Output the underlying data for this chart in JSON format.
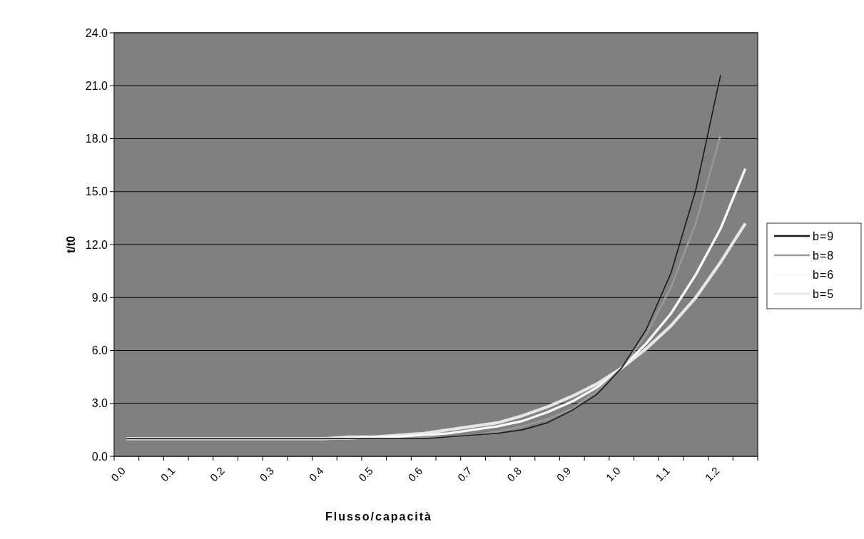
{
  "chart_data": {
    "type": "line",
    "xlabel": "Flusso/capacità",
    "ylabel": "t/t0",
    "categories": [
      "0.0",
      null,
      "0.1",
      null,
      "0.2",
      null,
      "0.3",
      null,
      "0.4",
      null,
      "0.5",
      null,
      "0.6",
      null,
      "0.7",
      null,
      "0.8",
      null,
      "0.9",
      null,
      "1.0",
      null,
      "1.1",
      null,
      "1.2",
      null
    ],
    "series": [
      {
        "name": "b=9",
        "color": "#1a1a1a",
        "values": [
          1,
          1,
          1,
          1,
          1,
          1,
          1,
          1,
          1,
          1,
          1,
          1,
          1,
          1.1,
          1.2,
          1.3,
          1.5,
          1.9,
          2.6,
          3.5,
          5,
          7.2,
          10.4,
          15.1,
          21.6,
          null
        ]
      },
      {
        "name": "b=8",
        "color": "#999999",
        "values": [
          1,
          1,
          1,
          1,
          1,
          1,
          1,
          1,
          1,
          1,
          1,
          1,
          1.1,
          1.1,
          1.2,
          1.4,
          1.7,
          2.1,
          2.7,
          3.7,
          5,
          6.9,
          9.6,
          13.2,
          18.2,
          null
        ]
      },
      {
        "name": "b=6",
        "color": "#f8f8f8",
        "values": [
          1,
          1,
          1,
          1,
          1,
          1,
          1,
          1,
          1,
          1,
          1.1,
          1.1,
          1.2,
          1.3,
          1.5,
          1.7,
          2,
          2.5,
          3.1,
          3.9,
          5,
          6.4,
          8.1,
          10.3,
          12.9,
          16.3
        ]
      },
      {
        "name": "b=5",
        "color": "#e6e6e6",
        "values": [
          1,
          1,
          1,
          1,
          1,
          1,
          1,
          1,
          1,
          1.1,
          1.1,
          1.2,
          1.3,
          1.5,
          1.7,
          1.9,
          2.3,
          2.8,
          3.4,
          4.1,
          5,
          6.1,
          7.4,
          9,
          11,
          13.2
        ]
      }
    ],
    "ylim": [
      0,
      24
    ],
    "yticks": [
      {
        "value": 0,
        "label": "0.0"
      },
      {
        "value": 3,
        "label": "3.0"
      },
      {
        "value": 6,
        "label": "6.0"
      },
      {
        "value": 9,
        "label": "9.0"
      },
      {
        "value": 12,
        "label": "12.0"
      },
      {
        "value": 15,
        "label": "15.0"
      },
      {
        "value": 18,
        "label": "18.0"
      },
      {
        "value": 21,
        "label": "21.0"
      },
      {
        "value": 24,
        "label": "24.0"
      }
    ],
    "grid": "y",
    "legend": "right",
    "line_style": "solid",
    "marker": "none"
  }
}
